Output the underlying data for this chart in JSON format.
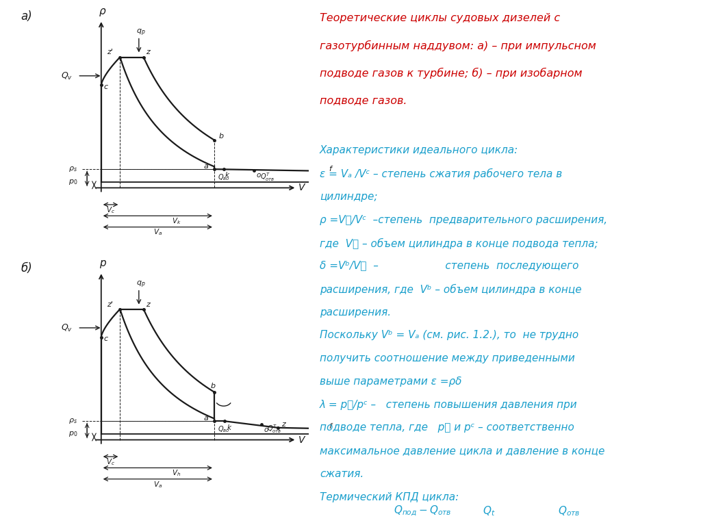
{
  "bg_color": "#ffffff",
  "diagram_color": "#1a1a1a",
  "title_color": "#cc0000",
  "body_color": "#1a9fcc",
  "title_lines": [
    "Теоретические циклы судовых дизелей с",
    "газотурбинным наддувом: а) – при импульсном",
    "подводе газов к турбине; б) – при изобарном",
    "подводе газов."
  ],
  "body_lines": [
    "",
    "Характеристики идеального цикла:",
    "ε = Vₐ /Vᶜ – степень сжатия рабочего тела в",
    "цилиндре;",
    "ρ =Vᵯ/Vᶜ  –степень  предварительного расширения,",
    "где  Vᵯ – объем цилиндра в конце подвода тепла;",
    "δ =Vᵇ/Vᵯ  –                    степень  последующего",
    "расширения, где  Vᵇ – объем цилиндра в конце",
    "расширения.",
    "Поскольку Vᵇ = Vₐ (см. рис. 1.2.), то  не трудно",
    "получить соотношение между приведенными",
    "выше параметрами ε =ρδ",
    "λ = pᵯ/pᶜ –   степень повышения давления при",
    "подводе тепла, где   pᵯ и pᶜ – соответственно",
    "максимальное давление цикла и давление в конце",
    "сжатия.",
    "Термический КПД цикла:"
  ]
}
